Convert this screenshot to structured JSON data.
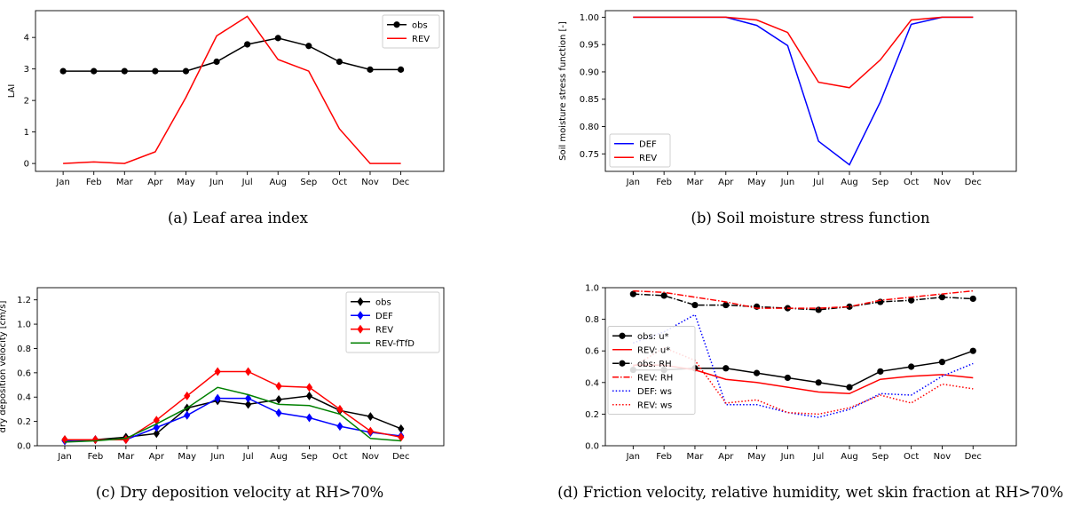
{
  "months": [
    "Jan",
    "Feb",
    "Mar",
    "Apr",
    "May",
    "Jun",
    "Jul",
    "Aug",
    "Sep",
    "Oct",
    "Nov",
    "Dec"
  ],
  "chart_data": [
    {
      "id": "a",
      "type": "line",
      "title": "",
      "xlabel": "",
      "ylabel": "LAI",
      "ylim": [
        -0.25,
        4.85
      ],
      "yticks": [
        0,
        1,
        2,
        3,
        4
      ],
      "ytick_labels": [
        "0",
        "1",
        "2",
        "3",
        "4"
      ],
      "legend": "top-right",
      "caption": "(a) Leaf area index",
      "series": [
        {
          "name": "obs",
          "color": "#000000",
          "style": "solid",
          "marker": "circle",
          "values": [
            2.93,
            2.93,
            2.93,
            2.93,
            2.93,
            3.23,
            3.78,
            3.98,
            3.73,
            3.23,
            2.98,
            2.98
          ]
        },
        {
          "name": "REV",
          "color": "#ff0000",
          "style": "solid",
          "marker": "none",
          "values": [
            0.0,
            0.05,
            0.0,
            0.37,
            2.1,
            4.05,
            4.67,
            3.3,
            2.93,
            1.1,
            0.0,
            0.0
          ]
        }
      ]
    },
    {
      "id": "b",
      "type": "line",
      "title": "",
      "xlabel": "",
      "ylabel": "Soil moisture stress function [-]",
      "ylim": [
        0.718,
        1.012
      ],
      "yticks": [
        0.75,
        0.8,
        0.85,
        0.9,
        0.95,
        1.0
      ],
      "ytick_labels": [
        "0.75",
        "0.80",
        "0.85",
        "0.90",
        "0.95",
        "1.00"
      ],
      "legend": "bottom-left",
      "caption": "(b) Soil moisture stress function",
      "series": [
        {
          "name": "DEF",
          "color": "#0000ff",
          "style": "solid",
          "marker": "none",
          "values": [
            1.0,
            1.0,
            1.0,
            1.0,
            0.985,
            0.948,
            0.773,
            0.73,
            0.845,
            0.987,
            1.0,
            1.0
          ]
        },
        {
          "name": "REV",
          "color": "#ff0000",
          "style": "solid",
          "marker": "none",
          "values": [
            1.0,
            1.0,
            1.0,
            1.0,
            0.995,
            0.972,
            0.881,
            0.871,
            0.922,
            0.995,
            1.0,
            1.0
          ]
        }
      ]
    },
    {
      "id": "c",
      "type": "line",
      "title": "",
      "xlabel": "",
      "ylabel": "dry deposition velocity [cm/s]",
      "ylim": [
        0,
        1.3
      ],
      "yticks": [
        0.0,
        0.2,
        0.4,
        0.6,
        0.8,
        1.0,
        1.2
      ],
      "ytick_labels": [
        "0.0",
        "0.2",
        "0.4",
        "0.6",
        "0.8",
        "1.0",
        "1.2"
      ],
      "legend": "top-right",
      "caption": "(c) Dry deposition velocity at RH>70%",
      "series": [
        {
          "name": "obs",
          "color": "#000000",
          "style": "solid",
          "marker": "diamond",
          "values": [
            0.05,
            0.05,
            0.07,
            0.1,
            0.31,
            0.37,
            0.34,
            0.38,
            0.41,
            0.29,
            0.24,
            0.14
          ]
        },
        {
          "name": "DEF",
          "color": "#0000ff",
          "style": "solid",
          "marker": "diamond",
          "values": [
            0.04,
            0.05,
            0.05,
            0.15,
            0.25,
            0.39,
            0.39,
            0.27,
            0.23,
            0.16,
            0.11,
            0.08
          ]
        },
        {
          "name": "REV",
          "color": "#ff0000",
          "style": "solid",
          "marker": "diamond",
          "values": [
            0.05,
            0.05,
            0.05,
            0.21,
            0.41,
            0.61,
            0.61,
            0.49,
            0.48,
            0.3,
            0.12,
            0.07
          ]
        },
        {
          "name": "REV-fTfD",
          "color": "#008000",
          "style": "solid",
          "marker": "none",
          "values": [
            0.03,
            0.04,
            0.06,
            0.18,
            0.31,
            0.48,
            0.42,
            0.34,
            0.33,
            0.26,
            0.06,
            0.04
          ]
        }
      ]
    },
    {
      "id": "d",
      "type": "line",
      "title": "",
      "xlabel": "",
      "ylabel": "",
      "ylim": [
        0,
        1.0
      ],
      "yticks": [
        0.0,
        0.2,
        0.4,
        0.6,
        0.8,
        1.0
      ],
      "ytick_labels": [
        "0.0",
        "0.2",
        "0.4",
        "0.6",
        "0.8",
        "1.0"
      ],
      "legend": "center-left",
      "caption": "(d) Friction velocity, relative humidity, wet skin fraction at RH>70%",
      "series": [
        {
          "name": "obs: u*",
          "color": "#000000",
          "style": "solid",
          "marker": "circle",
          "values": [
            0.48,
            0.48,
            0.49,
            0.49,
            0.46,
            0.43,
            0.4,
            0.37,
            0.47,
            0.5,
            0.53,
            0.6
          ]
        },
        {
          "name": "REV: u*",
          "color": "#ff0000",
          "style": "solid",
          "marker": "none",
          "values": [
            0.51,
            0.51,
            0.48,
            0.42,
            0.4,
            0.37,
            0.34,
            0.33,
            0.42,
            0.44,
            0.45,
            0.43
          ]
        },
        {
          "name": "obs: RH",
          "color": "#000000",
          "style": "dashdot",
          "marker": "circle",
          "values": [
            0.96,
            0.95,
            0.89,
            0.89,
            0.88,
            0.87,
            0.86,
            0.88,
            0.91,
            0.92,
            0.94,
            0.93
          ]
        },
        {
          "name": "REV: RH",
          "color": "#ff0000",
          "style": "dashdot",
          "marker": "none",
          "values": [
            0.98,
            0.97,
            0.94,
            0.91,
            0.87,
            0.87,
            0.87,
            0.88,
            0.92,
            0.94,
            0.96,
            0.98
          ]
        },
        {
          "name": "DEF: ws",
          "color": "#0000ff",
          "style": "dotted",
          "marker": "none",
          "values": [
            0.65,
            0.72,
            0.83,
            0.26,
            0.26,
            0.21,
            0.18,
            0.23,
            0.33,
            0.32,
            0.44,
            0.52
          ]
        },
        {
          "name": "REV: ws",
          "color": "#ff0000",
          "style": "dotted",
          "marker": "none",
          "values": [
            0.5,
            0.62,
            0.54,
            0.27,
            0.29,
            0.21,
            0.2,
            0.24,
            0.32,
            0.27,
            0.39,
            0.36
          ]
        }
      ]
    }
  ]
}
